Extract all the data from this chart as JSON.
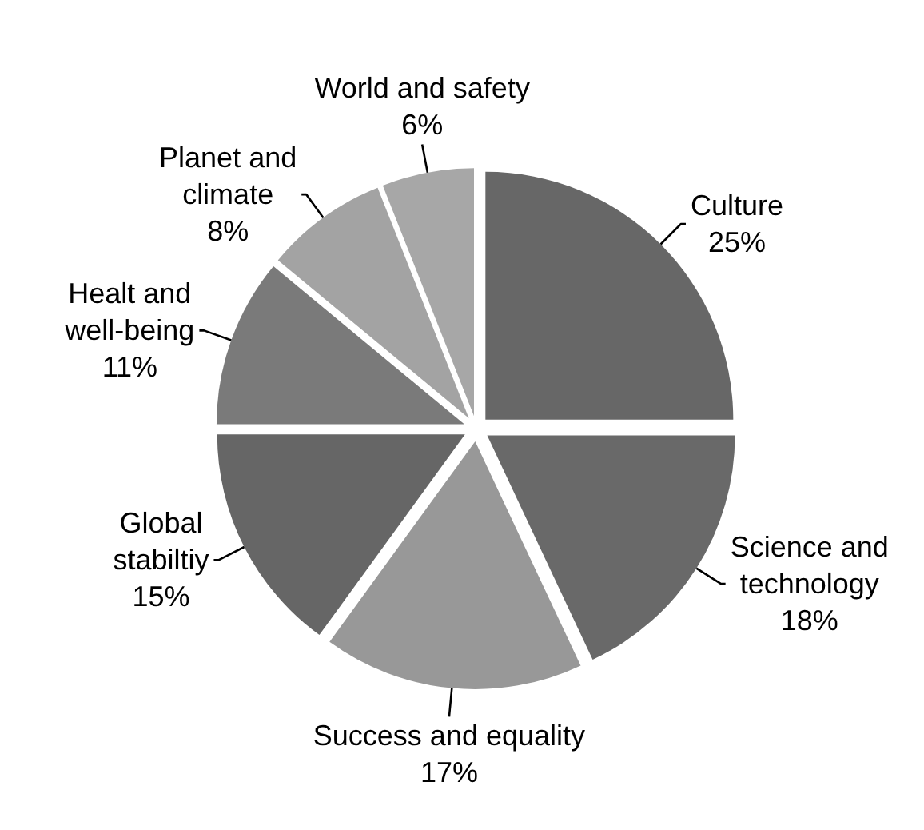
{
  "chart_data": {
    "type": "pie",
    "categories": [
      "Culture",
      "Science and technology",
      "Success and equality",
      "Global stabiltiy",
      "Healt and well-being",
      "Planet and climate",
      "World and safety"
    ],
    "values": [
      25,
      18,
      17,
      15,
      11,
      8,
      6
    ],
    "colors": [
      "#676767",
      "#696969",
      "#989898",
      "#666666",
      "#7a7a7a",
      "#a3a3a3",
      "#a7a7a7"
    ],
    "value_labels": [
      "25%",
      "18%",
      "17%",
      "15%",
      "11%",
      "8%",
      "6%"
    ]
  }
}
